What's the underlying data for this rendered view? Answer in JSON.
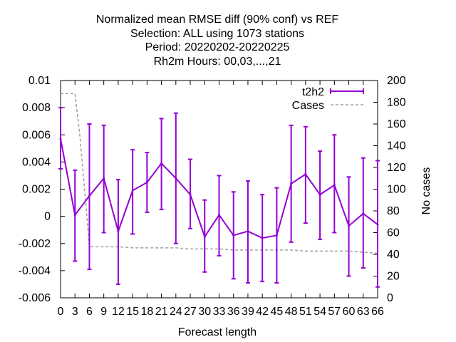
{
  "chart_data": {
    "type": "line",
    "title_lines": [
      "Normalized mean RMSE diff (90% conf) vs REF",
      "Selection: ALL using  1073 stations",
      "Period: 20220202-20220225",
      "Rh2m   Hours:  00,03,...,21"
    ],
    "xlabel": "Forecast length",
    "ylabel": "",
    "y2label": "No cases",
    "xlim": [
      0,
      66
    ],
    "ylim": [
      -0.006,
      0.01
    ],
    "y2lim": [
      0,
      200
    ],
    "x_ticks": [
      0,
      3,
      6,
      9,
      12,
      15,
      18,
      21,
      24,
      27,
      30,
      33,
      36,
      39,
      42,
      45,
      48,
      51,
      54,
      57,
      60,
      63,
      66
    ],
    "y_ticks": [
      "-0.006",
      "-0.004",
      "-0.002",
      "0",
      "0.002",
      "0.004",
      "0.006",
      "0.008",
      "0.01"
    ],
    "y_tick_values": [
      -0.006,
      -0.004,
      -0.002,
      0,
      0.002,
      0.004,
      0.006,
      0.008,
      0.01
    ],
    "y2_ticks": [
      0,
      20,
      40,
      60,
      80,
      100,
      120,
      140,
      160,
      180,
      200
    ],
    "legend_position": "top-right",
    "series": [
      {
        "name": "t2h2",
        "color": "#9400d3",
        "axis": "y",
        "x": [
          0,
          3,
          6,
          9,
          12,
          15,
          18,
          21,
          24,
          27,
          30,
          33,
          36,
          39,
          42,
          45,
          48,
          51,
          54,
          57,
          60,
          63,
          66
        ],
        "values": [
          0.0057,
          0.0001,
          0.0015,
          0.0028,
          -0.0011,
          0.0019,
          0.0025,
          0.0039,
          0.0028,
          0.0016,
          -0.0015,
          0.0001,
          -0.0014,
          -0.0011,
          -0.0016,
          -0.0014,
          0.0024,
          0.0031,
          0.0016,
          0.0023,
          -0.0007,
          0.0002,
          -0.0006
        ],
        "err_low": [
          0.0035,
          -0.0033,
          -0.0039,
          -0.0012,
          -0.005,
          -0.0013,
          0.0003,
          0.0005,
          -0.002,
          -0.0009,
          -0.0041,
          -0.0029,
          -0.0046,
          -0.0049,
          -0.0048,
          -0.0049,
          -0.0019,
          -0.0005,
          -0.0017,
          -0.0012,
          -0.0044,
          -0.0038,
          -0.0052
        ],
        "err_high": [
          0.008,
          0.0034,
          0.0068,
          0.0067,
          0.0027,
          0.0049,
          0.0047,
          0.0072,
          0.0076,
          0.0042,
          0.0012,
          0.003,
          0.0018,
          0.0026,
          0.0016,
          0.0021,
          0.0067,
          0.0066,
          0.0048,
          0.006,
          0.0029,
          0.0043,
          0.0041
        ]
      },
      {
        "name": "Cases",
        "color": "#a0a0a0",
        "axis": "y2",
        "x": [
          0,
          3,
          4,
          5,
          6,
          9,
          12,
          15,
          18,
          21,
          24,
          27,
          30,
          33,
          36,
          39,
          42,
          45,
          48,
          51,
          54,
          57,
          60,
          63,
          66
        ],
        "values": [
          188,
          188,
          150,
          100,
          47,
          47,
          47,
          46,
          46,
          46,
          46,
          45,
          45,
          45,
          44,
          44,
          44,
          44,
          44,
          43,
          43,
          43,
          43,
          42,
          41
        ]
      }
    ]
  }
}
